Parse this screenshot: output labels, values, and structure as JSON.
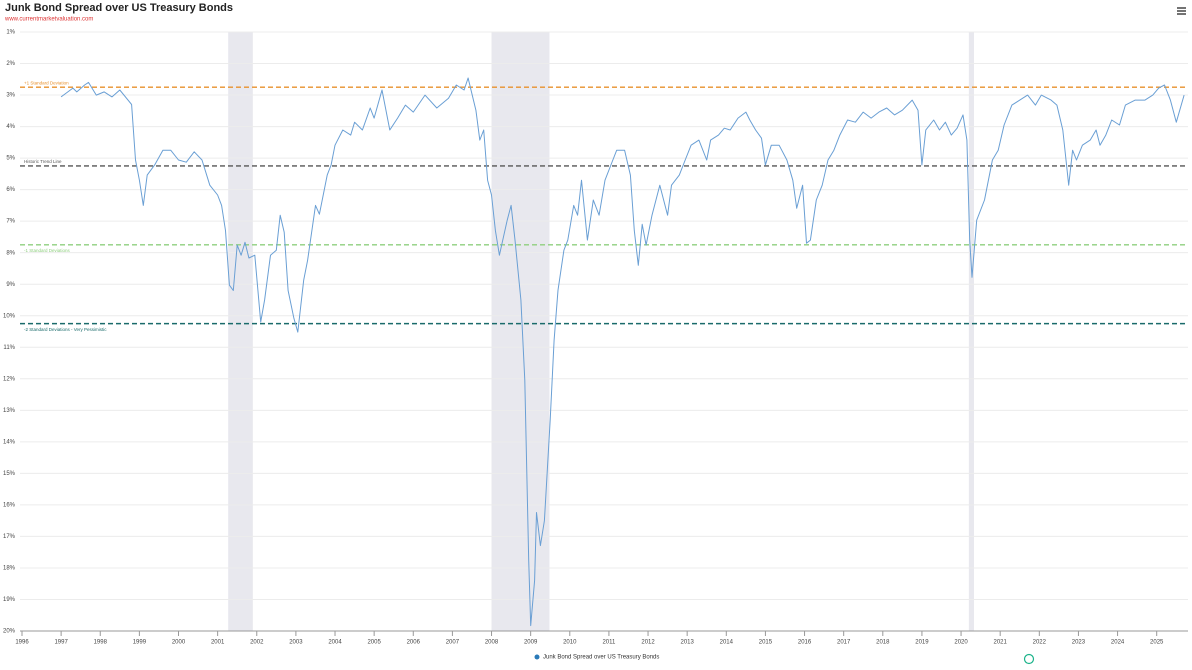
{
  "chart_data": {
    "type": "line",
    "title": "Junk Bond Spread over US Treasury Bonds",
    "subtitle": "www.currentmarketvaluation.com",
    "x": [
      1997.0,
      1997.3,
      1997.4,
      1997.6,
      1997.7,
      1997.9,
      1998.1,
      1998.3,
      1998.5,
      1998.8,
      1998.9,
      1999.0,
      1999.1,
      1999.2,
      1999.4,
      1999.6,
      1999.8,
      2000.0,
      2000.2,
      2000.4,
      2000.6,
      2000.8,
      2001.0,
      2001.1,
      2001.2,
      2001.3,
      2001.4,
      2001.5,
      2001.6,
      2001.7,
      2001.8,
      2001.95,
      2002.1,
      2002.2,
      2002.35,
      2002.5,
      2002.6,
      2002.7,
      2002.8,
      2002.95,
      2003.05,
      2003.2,
      2003.3,
      2003.5,
      2003.6,
      2003.8,
      2003.9,
      2004.0,
      2004.2,
      2004.4,
      2004.5,
      2004.7,
      2004.9,
      2005.0,
      2005.2,
      2005.4,
      2005.6,
      2005.8,
      2006.0,
      2006.3,
      2006.6,
      2006.9,
      2007.1,
      2007.3,
      2007.4,
      2007.6,
      2007.7,
      2007.8,
      2007.9,
      2008.0,
      2008.1,
      2008.2,
      2008.4,
      2008.5,
      2008.6,
      2008.75,
      2008.85,
      2008.95,
      2009.0,
      2009.1,
      2009.15,
      2009.25,
      2009.35,
      2009.5,
      2009.6,
      2009.7,
      2009.85,
      2009.95,
      2010.1,
      2010.2,
      2010.3,
      2010.45,
      2010.6,
      2010.75,
      2010.9,
      2011.05,
      2011.2,
      2011.4,
      2011.55,
      2011.65,
      2011.75,
      2011.85,
      2011.95,
      2012.1,
      2012.3,
      2012.5,
      2012.6,
      2012.8,
      2012.95,
      2013.1,
      2013.3,
      2013.5,
      2013.6,
      2013.8,
      2013.95,
      2014.1,
      2014.3,
      2014.5,
      2014.6,
      2014.75,
      2014.9,
      2015.0,
      2015.15,
      2015.35,
      2015.55,
      2015.7,
      2015.8,
      2015.95,
      2016.05,
      2016.15,
      2016.3,
      2016.45,
      2016.6,
      2016.75,
      2016.9,
      2017.1,
      2017.3,
      2017.5,
      2017.7,
      2017.9,
      2018.1,
      2018.3,
      2018.5,
      2018.75,
      2018.9,
      2019.0,
      2019.1,
      2019.3,
      2019.45,
      2019.6,
      2019.75,
      2019.9,
      2020.05,
      2020.15,
      2020.22,
      2020.28,
      2020.4,
      2020.6,
      2020.8,
      2020.95,
      2021.1,
      2021.3,
      2021.5,
      2021.7,
      2021.9,
      2022.05,
      2022.3,
      2022.45,
      2022.6,
      2022.75,
      2022.85,
      2022.95,
      2023.1,
      2023.3,
      2023.45,
      2023.55,
      2023.7,
      2023.85,
      2024.05,
      2024.2,
      2024.45,
      2024.7,
      2024.9,
      2025.05,
      2025.2,
      2025.35,
      2025.5,
      2025.7
    ],
    "series": [
      {
        "name": "Junk Bond Spread over US Treasury Bonds",
        "color": "#6a9fd4",
        "values": [
          3.06,
          2.78,
          2.9,
          2.68,
          2.6,
          3.0,
          2.9,
          3.06,
          2.84,
          3.3,
          5.06,
          5.7,
          6.5,
          5.54,
          5.2,
          4.75,
          4.75,
          5.06,
          5.13,
          4.8,
          5.06,
          5.86,
          6.17,
          6.5,
          7.3,
          9.03,
          9.2,
          7.76,
          8.08,
          7.67,
          8.17,
          8.08,
          10.2,
          9.5,
          8.08,
          7.92,
          6.81,
          7.35,
          9.2,
          10.08,
          10.52,
          8.87,
          8.24,
          6.5,
          6.78,
          5.54,
          5.22,
          4.59,
          4.11,
          4.27,
          3.86,
          4.11,
          3.41,
          3.73,
          2.84,
          4.11,
          3.73,
          3.32,
          3.54,
          3.0,
          3.41,
          3.1,
          2.68,
          2.84,
          2.46,
          3.48,
          4.43,
          4.11,
          5.7,
          6.17,
          7.3,
          8.08,
          6.97,
          6.5,
          7.6,
          9.5,
          12.05,
          17.76,
          19.83,
          18.4,
          16.24,
          17.29,
          16.5,
          13.3,
          10.78,
          9.19,
          7.92,
          7.6,
          6.5,
          6.81,
          5.7,
          7.6,
          6.33,
          6.81,
          5.7,
          5.22,
          4.75,
          4.75,
          5.54,
          7.3,
          8.4,
          7.1,
          7.76,
          6.81,
          5.86,
          6.81,
          5.86,
          5.54,
          5.06,
          4.59,
          4.43,
          5.06,
          4.43,
          4.27,
          4.05,
          4.11,
          3.73,
          3.54,
          3.79,
          4.11,
          4.37,
          5.22,
          4.59,
          4.59,
          5.06,
          5.7,
          6.59,
          5.86,
          7.7,
          7.6,
          6.33,
          5.86,
          5.06,
          4.75,
          4.27,
          3.79,
          3.86,
          3.54,
          3.73,
          3.54,
          3.41,
          3.63,
          3.48,
          3.16,
          3.48,
          5.22,
          4.11,
          3.79,
          4.11,
          3.86,
          4.27,
          4.05,
          3.63,
          4.43,
          7.6,
          8.78,
          6.97,
          6.33,
          5.06,
          4.75,
          3.95,
          3.32,
          3.16,
          3.0,
          3.32,
          3.0,
          3.16,
          3.32,
          4.11,
          5.86,
          4.75,
          5.06,
          4.59,
          4.43,
          4.11,
          4.59,
          4.27,
          3.79,
          3.95,
          3.32,
          3.16,
          3.16,
          3.0,
          2.78,
          2.68,
          3.16,
          3.86,
          3.0
        ]
      }
    ],
    "reference_lines": [
      {
        "label": "+1 Standard Deviation",
        "value": 2.75,
        "color": "#e8912d"
      },
      {
        "label": "Historic Trend Line",
        "value": 5.25,
        "color": "#555555"
      },
      {
        "label": "-1 Standard Deviations",
        "value": 7.75,
        "color": "#8fcf7f"
      },
      {
        "label": "-2 Standard Deviations - Very Pessimistic",
        "value": 10.25,
        "color": "#1a6b6b"
      }
    ],
    "shaded_ranges": [
      [
        2001.27,
        2001.9
      ],
      [
        2008.0,
        2009.48
      ],
      [
        2020.2,
        2020.33
      ]
    ],
    "shade_color": "#e8e8ee",
    "xlim": [
      1996,
      2025.8
    ],
    "xticks": [
      1996,
      1997,
      1998,
      1999,
      2000,
      2001,
      2002,
      2003,
      2004,
      2005,
      2006,
      2007,
      2008,
      2009,
      2010,
      2011,
      2012,
      2013,
      2014,
      2015,
      2016,
      2017,
      2018,
      2019,
      2020,
      2021,
      2022,
      2023,
      2024,
      2025
    ],
    "ylim": [
      1,
      20
    ],
    "y_reversed": true,
    "yticks": [
      {
        "value": 1,
        "label": "1%"
      },
      {
        "value": 2,
        "label": "2%"
      },
      {
        "value": 3,
        "label": "3%"
      },
      {
        "value": 4,
        "label": "4%"
      },
      {
        "value": 5,
        "label": "5%"
      },
      {
        "value": 6,
        "label": "6%"
      },
      {
        "value": 7,
        "label": "7%"
      },
      {
        "value": 8,
        "label": "8%"
      },
      {
        "value": 9,
        "label": "9%"
      },
      {
        "value": 10,
        "label": "10%"
      },
      {
        "value": 11,
        "label": "11%"
      },
      {
        "value": 12,
        "label": "12%"
      },
      {
        "value": 13,
        "label": "13%"
      },
      {
        "value": 14,
        "label": "14%"
      },
      {
        "value": 15,
        "label": "15%"
      },
      {
        "value": 16,
        "label": "16%"
      },
      {
        "value": 17,
        "label": "17%"
      },
      {
        "value": 18,
        "label": "18%"
      },
      {
        "value": 19,
        "label": "19%"
      },
      {
        "value": 20,
        "label": "20%"
      }
    ],
    "grid": true,
    "legend": "bottom"
  }
}
